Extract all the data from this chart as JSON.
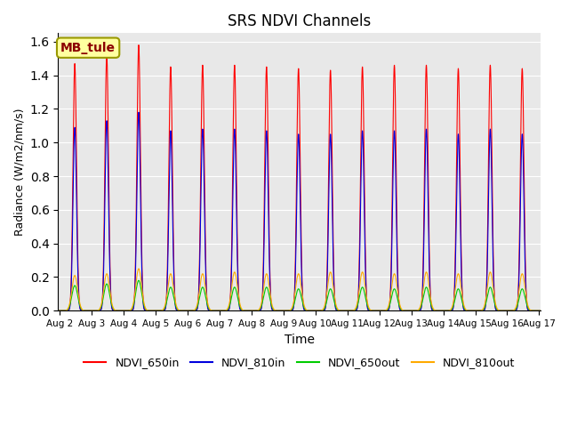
{
  "title": "SRS NDVI Channels",
  "xlabel": "Time",
  "ylabel": "Radiance (W/m2/nm/s)",
  "ylim": [
    0,
    1.65
  ],
  "annotation": "MB_tule",
  "background_color": "#e8e8e8",
  "legend": [
    {
      "label": "NDVI_650in",
      "color": "#ff0000"
    },
    {
      "label": "NDVI_810in",
      "color": "#0000dd"
    },
    {
      "label": "NDVI_650out",
      "color": "#00cc00"
    },
    {
      "label": "NDVI_810out",
      "color": "#ffaa00"
    }
  ],
  "peaks_650in": [
    1.47,
    1.52,
    1.58,
    1.45,
    1.46,
    1.46,
    1.45,
    1.44,
    1.43,
    1.45,
    1.46,
    1.46,
    1.44,
    1.46,
    1.44
  ],
  "peaks_810in": [
    1.09,
    1.13,
    1.18,
    1.07,
    1.08,
    1.08,
    1.07,
    1.05,
    1.05,
    1.07,
    1.07,
    1.08,
    1.05,
    1.08,
    1.05
  ],
  "peaks_650out": [
    0.15,
    0.16,
    0.18,
    0.14,
    0.14,
    0.14,
    0.14,
    0.13,
    0.13,
    0.14,
    0.13,
    0.14,
    0.13,
    0.14,
    0.13
  ],
  "peaks_810out": [
    0.21,
    0.22,
    0.25,
    0.22,
    0.22,
    0.23,
    0.22,
    0.22,
    0.23,
    0.23,
    0.22,
    0.23,
    0.22,
    0.23,
    0.22
  ],
  "peak_sigma_in": 0.055,
  "peak_sigma_out": 0.09,
  "n_days": 15,
  "ticks": [
    "Aug 2",
    "Aug 3",
    "Aug 4",
    "Aug 5",
    "Aug 6",
    "Aug 7",
    "Aug 8",
    "Aug 9",
    "Aug 10",
    "Aug 11",
    "Aug 12",
    "Aug 13",
    "Aug 14",
    "Aug 15",
    "Aug 16",
    "Aug 17"
  ]
}
